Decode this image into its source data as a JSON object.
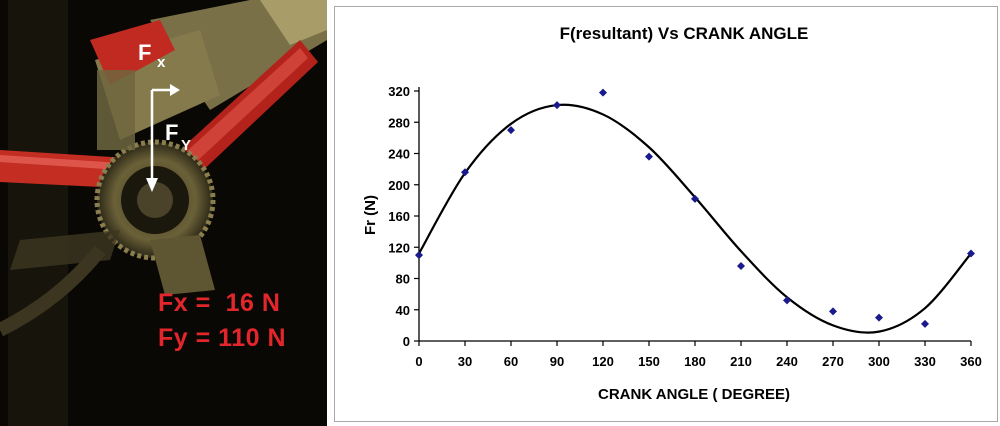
{
  "photo": {
    "vector_labels": {
      "fx_main": "F",
      "fx_sub": "x",
      "fy_main": "F",
      "fy_sub": "Y"
    },
    "readouts": [
      "Fx =  16 N",
      "Fy = 110 N"
    ],
    "readout_color": "#e3262b"
  },
  "chart_data": {
    "type": "scatter",
    "title": "F(resultant) Vs CRANK ANGLE",
    "xlabel": "CRANK ANGLE ( DEGREE)",
    "ylabel": "Fr (N)",
    "xlim": [
      0,
      360
    ],
    "ylim": [
      0,
      320
    ],
    "xticks": [
      0,
      30,
      60,
      90,
      120,
      150,
      180,
      210,
      240,
      270,
      300,
      330,
      360
    ],
    "yticks": [
      0,
      40,
      80,
      120,
      160,
      200,
      240,
      280,
      320
    ],
    "grid": false,
    "legend": "none",
    "series": [
      {
        "x": [
          0,
          30,
          60,
          90,
          120,
          150,
          180,
          210,
          240,
          270,
          300,
          330,
          360
        ],
        "values": [
          110,
          216,
          270,
          302,
          318,
          236,
          182,
          96,
          52,
          38,
          30,
          22,
          112
        ],
        "color": "#1a1a8c",
        "marker": "diamond"
      }
    ],
    "trendline": {
      "type": "polynomial",
      "color": "#000000",
      "points": {
        "x": [
          0,
          30,
          60,
          90,
          120,
          150,
          180,
          210,
          240,
          270,
          300,
          330,
          360
        ],
        "y": [
          112,
          215,
          278,
          302,
          290,
          248,
          184,
          115,
          56,
          20,
          12,
          42,
          112
        ]
      }
    }
  }
}
